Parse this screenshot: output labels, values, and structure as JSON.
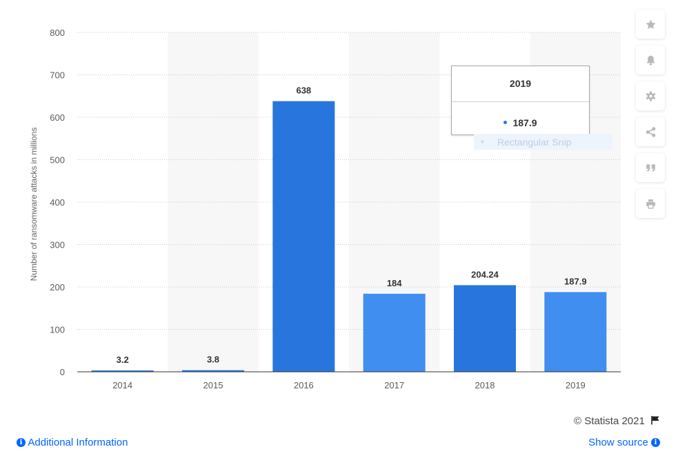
{
  "chart_data": {
    "type": "bar",
    "categories": [
      "2014",
      "2015",
      "2016",
      "2017",
      "2018",
      "2019"
    ],
    "values": [
      3.2,
      3.8,
      638,
      184,
      204.24,
      187.9
    ],
    "value_labels": [
      "3.2",
      "3.8",
      "638",
      "184",
      "204.24",
      "187.9"
    ],
    "title": "",
    "xlabel": "",
    "ylabel": "Number of ransomware attacks in millions",
    "ylim": [
      0,
      800
    ],
    "yticks": [
      "0",
      "100",
      "200",
      "300",
      "400",
      "500",
      "600",
      "700",
      "800"
    ],
    "grid": "horizontal dotted",
    "legend": "none",
    "bar_colors": [
      "#2876dd",
      "#2876dd",
      "#2876dd",
      "#3f8ef0",
      "#2876dd",
      "#3f8ef0"
    ],
    "band_color": "#f7f7f7"
  },
  "tooltip": {
    "title": "2019",
    "value": "187.9",
    "dot_color": "#2876dd"
  },
  "snip_label": "Rectangular Snip",
  "toolbar": {
    "buttons": [
      "star-icon",
      "bell-icon",
      "gear-icon",
      "share-icon",
      "quote-icon",
      "print-icon"
    ]
  },
  "footer": {
    "additional_info": "Additional Information",
    "show_source": "Show source",
    "copyright": "© Statista 2021"
  },
  "colors": {
    "link": "#0066ff",
    "icon": "#b9b9b9"
  }
}
